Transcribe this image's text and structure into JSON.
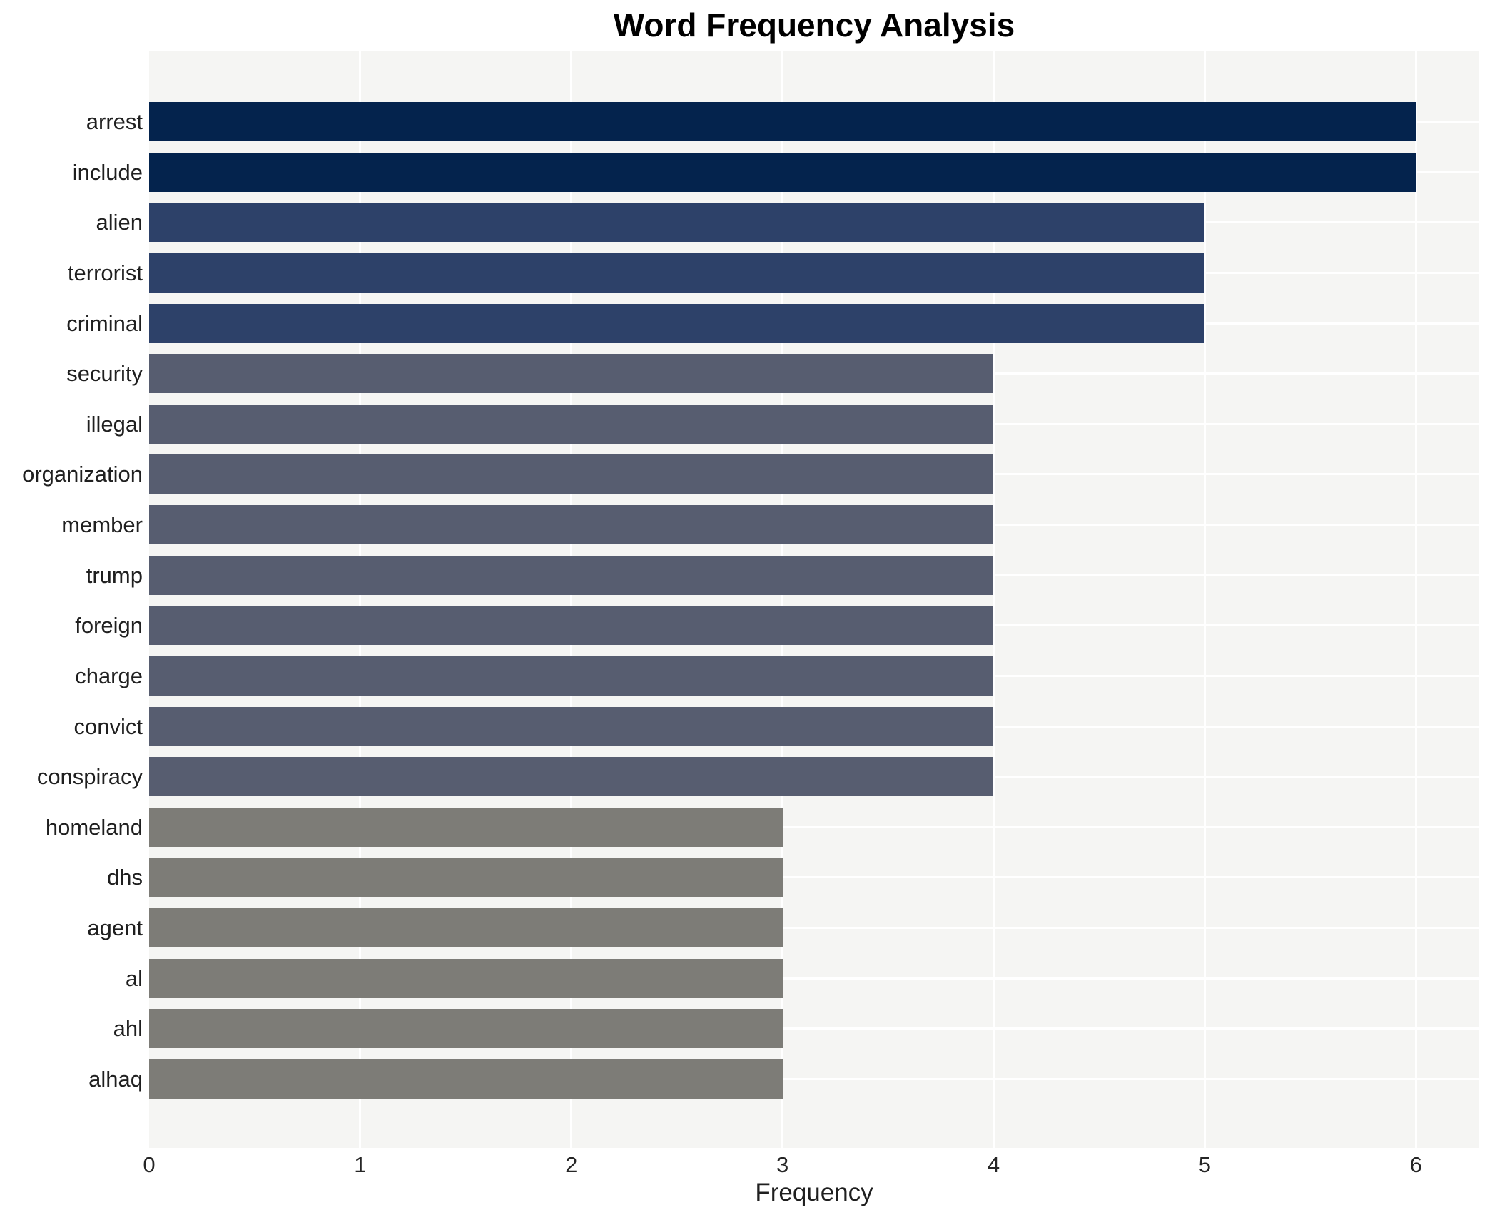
{
  "title": "Word Frequency Analysis",
  "xlabel": "Frequency",
  "chart_data": {
    "type": "bar",
    "orientation": "horizontal",
    "title": "Word Frequency Analysis",
    "xlabel": "Frequency",
    "ylabel": "",
    "categories": [
      "arrest",
      "include",
      "alien",
      "terrorist",
      "criminal",
      "security",
      "illegal",
      "organization",
      "member",
      "trump",
      "foreign",
      "charge",
      "convict",
      "conspiracy",
      "homeland",
      "dhs",
      "agent",
      "al",
      "ahl",
      "alhaq"
    ],
    "values": [
      6,
      6,
      5,
      5,
      5,
      4,
      4,
      4,
      4,
      4,
      4,
      4,
      4,
      4,
      3,
      3,
      3,
      3,
      3,
      3
    ],
    "xlim": [
      0,
      6.3
    ],
    "xticks": [
      0,
      1,
      2,
      3,
      4,
      5,
      6
    ],
    "grid": true,
    "legend": false,
    "colors": {
      "value_6": "#04234d",
      "value_5": "#2d4169",
      "value_4": "#575d70",
      "value_3": "#7d7c77",
      "plot_background": "#f5f5f3",
      "gridline": "#ffffff",
      "text": "#1f1f1f"
    }
  }
}
